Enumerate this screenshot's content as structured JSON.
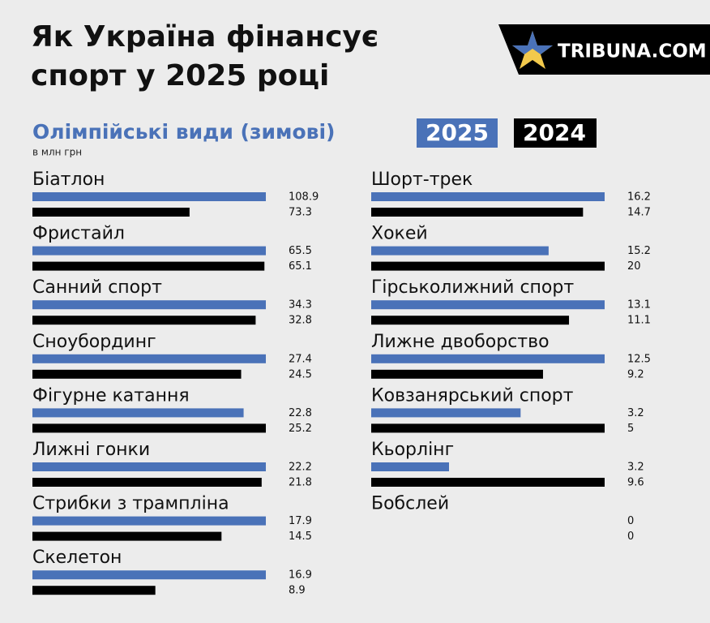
{
  "brand": "TRIBUNA.COM",
  "chart_data": {
    "type": "bar",
    "orientation": "horizontal",
    "title": "Як Україна фінансує спорт у 2025 році",
    "subtitle": "Олімпійські види (зимові)",
    "unit": "в млн грн",
    "categories": [
      "Біатлон",
      "Фристайл",
      "Санний спорт",
      "Сноубординг",
      "Фігурне катання",
      "Лижні гонки",
      "Стрибки з трампліна",
      "Скелетон",
      "Шорт-трек",
      "Хокей",
      "Гірськолижний спорт",
      "Лижне двоборство",
      "Ковзанярський спорт",
      "Кьорлінг",
      "Бобслей"
    ],
    "series": [
      {
        "name": "2025",
        "color": "#4a72b8",
        "values": [
          108.9,
          65.5,
          34.3,
          27.4,
          22.8,
          22.2,
          17.9,
          16.9,
          16.2,
          15.2,
          13.1,
          12.5,
          3.2,
          3.2,
          0
        ]
      },
      {
        "name": "2024",
        "color": "#000000",
        "values": [
          73.3,
          65.1,
          32.8,
          24.5,
          25.2,
          21.8,
          14.5,
          8.9,
          14.7,
          20,
          11.1,
          9.2,
          5,
          9.6,
          0
        ]
      }
    ]
  }
}
